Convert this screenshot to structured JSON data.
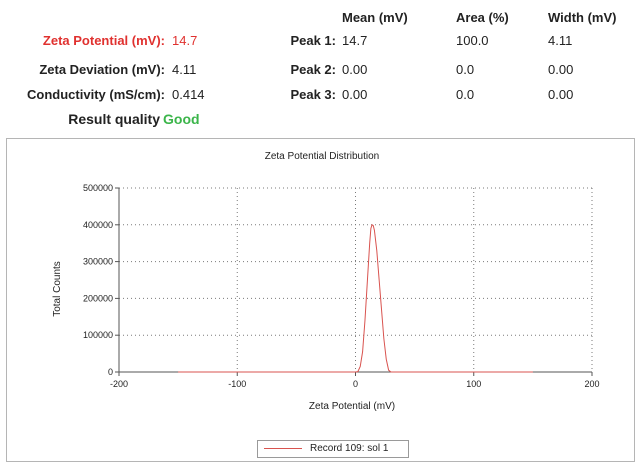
{
  "summary": {
    "zeta_potential": {
      "label": "Zeta Potential (mV):",
      "value": "14.7",
      "color": "#e0312f"
    },
    "zeta_deviation": {
      "label": "Zeta Deviation (mV):",
      "value": "4.11"
    },
    "conductivity": {
      "label": "Conductivity (mS/cm):",
      "value": "0.414"
    },
    "result_quality": {
      "label": "Result quality",
      "value": "Good",
      "color": "#3bb54a"
    }
  },
  "peaks_table": {
    "headers": [
      "Mean (mV)",
      "Area (%)",
      "Width (mV)"
    ],
    "rows": [
      {
        "label": "Peak 1:",
        "mean": "14.7",
        "area": "100.0",
        "width": "4.11"
      },
      {
        "label": "Peak 2:",
        "mean": "0.00",
        "area": "0.0",
        "width": "0.00"
      },
      {
        "label": "Peak 3:",
        "mean": "0.00",
        "area": "0.0",
        "width": "0.00"
      }
    ]
  },
  "legend": {
    "label": "Record 109: sol 1",
    "color": "#d9534f"
  },
  "chart_data": {
    "type": "line",
    "title": "Zeta Potential Distribution",
    "xlabel": "Zeta Potential (mV)",
    "ylabel": "Total Counts",
    "xlim": [
      -200,
      200
    ],
    "ylim": [
      0,
      500000
    ],
    "xticks": [
      -200,
      -100,
      0,
      100,
      200
    ],
    "yticks": [
      0,
      100000,
      200000,
      300000,
      400000,
      500000
    ],
    "grid": true,
    "legend_position": "bottom-center",
    "series": [
      {
        "name": "Record 109: sol 1",
        "color": "#d9534f",
        "x": [
          -150,
          0,
          2,
          4,
          6,
          8,
          10,
          12,
          13,
          14,
          15,
          16,
          18,
          20,
          22,
          24,
          26,
          28,
          30,
          150
        ],
        "y": [
          0,
          0,
          1000,
          15000,
          55000,
          140000,
          245000,
          350000,
          390000,
          400000,
          398000,
          385000,
          330000,
          250000,
          170000,
          90000,
          35000,
          5000,
          0,
          0
        ]
      }
    ]
  }
}
